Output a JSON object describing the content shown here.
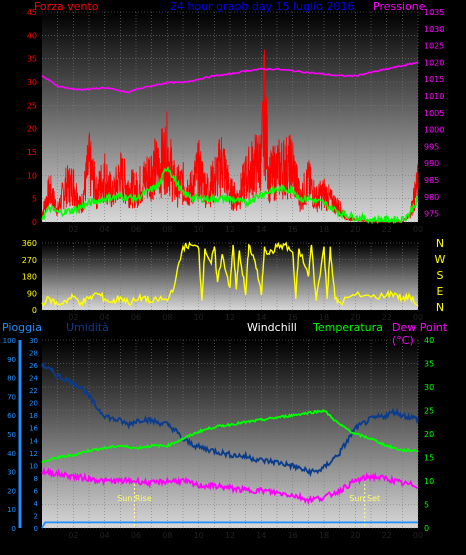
{
  "colors": {
    "wind": "#ff0000",
    "wind_avg": "#00ff00",
    "pressure": "#ff00ff",
    "direction": "#ffff00",
    "rain": "#1e90ff",
    "humidity": "#0b3c8c",
    "temperature": "#00ff00",
    "dewpoint": "#ff00ff",
    "windchill": "#003c96",
    "sun": "#ffff99",
    "axis_label": "#ff0000",
    "title": "#0000ff",
    "hour_labels": "#000000"
  },
  "header": {
    "left_label": "Forza vento",
    "title": "24 hour graph day 15 luglio 2016",
    "right_label": "Pressione"
  },
  "legend_bottom": {
    "rain": "Pioggia",
    "humidity": "Umidità",
    "windchill": "Windchill",
    "temperature": "Temperatura",
    "dewpoint": "Dew Point (°C)"
  },
  "hour_ticks": [
    "02",
    "04",
    "06",
    "08",
    "10",
    "12",
    "14",
    "16",
    "18",
    "20",
    "22",
    "00"
  ],
  "sun": {
    "rise_label": "Sun Rise",
    "set_label": "Sun Set",
    "rise_hour": 5.9,
    "set_hour": 20.6
  },
  "chart_data": [
    {
      "type": "line",
      "name_left": "Forza vento",
      "name_right": "Pressione",
      "x_range_hours": [
        0,
        24
      ],
      "y_left_range": [
        0,
        45
      ],
      "y_left_ticks": [
        0,
        5,
        10,
        15,
        20,
        25,
        30,
        35,
        40,
        45
      ],
      "y_right_range": [
        972.5,
        1035
      ],
      "y_right_ticks": [
        975,
        980,
        985,
        990,
        995,
        1000,
        1005,
        1010,
        1015,
        1020,
        1025,
        1030,
        1035
      ],
      "wind_gust_profile": [
        [
          0,
          3
        ],
        [
          0.5,
          11
        ],
        [
          1,
          4
        ],
        [
          1.5,
          12
        ],
        [
          2,
          13
        ],
        [
          2.5,
          5
        ],
        [
          3,
          20
        ],
        [
          3.5,
          10
        ],
        [
          4,
          16
        ],
        [
          4.5,
          9
        ],
        [
          5,
          16
        ],
        [
          5.5,
          12
        ],
        [
          6,
          11
        ],
        [
          6.5,
          14
        ],
        [
          7,
          18
        ],
        [
          7.5,
          19
        ],
        [
          8,
          24
        ],
        [
          8.5,
          12
        ],
        [
          9,
          13
        ],
        [
          9.5,
          11
        ],
        [
          10,
          18
        ],
        [
          10.5,
          11
        ],
        [
          11,
          14
        ],
        [
          11.5,
          21
        ],
        [
          12,
          10
        ],
        [
          12.5,
          8
        ],
        [
          13,
          15
        ],
        [
          13.5,
          19
        ],
        [
          14,
          21
        ],
        [
          14.2,
          40
        ],
        [
          14.5,
          15
        ],
        [
          15,
          18
        ],
        [
          15.5,
          19
        ],
        [
          16,
          19
        ],
        [
          16.5,
          8
        ],
        [
          17,
          14
        ],
        [
          17.5,
          8
        ],
        [
          18,
          10
        ],
        [
          18.5,
          7
        ],
        [
          19,
          5
        ],
        [
          19.5,
          1
        ],
        [
          20,
          1
        ],
        [
          21,
          0
        ],
        [
          22,
          0
        ],
        [
          23,
          0
        ],
        [
          23.5,
          3
        ],
        [
          24,
          13
        ]
      ],
      "wind_avg": [
        [
          0,
          1
        ],
        [
          0.5,
          3
        ],
        [
          1,
          2
        ],
        [
          2,
          2.5
        ],
        [
          3,
          4
        ],
        [
          4,
          5
        ],
        [
          5,
          5.5
        ],
        [
          6,
          5
        ],
        [
          6.5,
          6
        ],
        [
          7,
          7
        ],
        [
          7.5,
          8
        ],
        [
          8,
          12
        ],
        [
          8.5,
          9
        ],
        [
          9,
          6
        ],
        [
          10,
          5
        ],
        [
          11,
          5
        ],
        [
          12,
          5
        ],
        [
          13,
          4
        ],
        [
          14,
          6
        ],
        [
          15,
          7
        ],
        [
          16,
          7
        ],
        [
          16.5,
          5
        ],
        [
          17,
          5
        ],
        [
          18,
          4
        ],
        [
          19,
          2
        ],
        [
          20,
          1
        ],
        [
          21,
          0.5
        ],
        [
          22,
          0.5
        ],
        [
          23,
          0.5
        ],
        [
          23.5,
          2
        ],
        [
          24,
          5
        ]
      ],
      "pressure": [
        [
          0,
          1016
        ],
        [
          1,
          1013
        ],
        [
          2,
          1012
        ],
        [
          3,
          1012
        ],
        [
          4,
          1012.5
        ],
        [
          5,
          1011.5
        ],
        [
          5.5,
          1011
        ],
        [
          6,
          1012
        ],
        [
          7,
          1013
        ],
        [
          8,
          1014
        ],
        [
          9,
          1014
        ],
        [
          10,
          1015
        ],
        [
          11,
          1016
        ],
        [
          12,
          1016.5
        ],
        [
          13,
          1017.5
        ],
        [
          14,
          1018
        ],
        [
          15,
          1018
        ],
        [
          16,
          1017.5
        ],
        [
          17,
          1017
        ],
        [
          18,
          1016.5
        ],
        [
          19,
          1016
        ],
        [
          20,
          1016
        ],
        [
          21,
          1017
        ],
        [
          22,
          1018
        ],
        [
          23,
          1019
        ],
        [
          24,
          1020
        ]
      ]
    },
    {
      "type": "line",
      "name_right": "N W S E N",
      "y_range": [
        0,
        360
      ],
      "y_ticks": [
        0,
        90,
        180,
        270,
        360
      ],
      "direction": [
        [
          0,
          40
        ],
        [
          0.5,
          60
        ],
        [
          1,
          30
        ],
        [
          1.5,
          50
        ],
        [
          2,
          70
        ],
        [
          2.5,
          40
        ],
        [
          3,
          60
        ],
        [
          3.5,
          90
        ],
        [
          4,
          60
        ],
        [
          4.5,
          40
        ],
        [
          5,
          70
        ],
        [
          5.5,
          40
        ],
        [
          6,
          50
        ],
        [
          6.5,
          70
        ],
        [
          7,
          40
        ],
        [
          7.5,
          60
        ],
        [
          8,
          50
        ],
        [
          8.5,
          150
        ],
        [
          9,
          340
        ],
        [
          9.5,
          350
        ],
        [
          10,
          330
        ],
        [
          10.2,
          50
        ],
        [
          10.4,
          330
        ],
        [
          10.8,
          250
        ],
        [
          11,
          340
        ],
        [
          11.2,
          150
        ],
        [
          11.5,
          300
        ],
        [
          12,
          120
        ],
        [
          12.2,
          350
        ],
        [
          12.4,
          110
        ],
        [
          12.6,
          320
        ],
        [
          13,
          80
        ],
        [
          13.2,
          350
        ],
        [
          13.6,
          260
        ],
        [
          14,
          80
        ],
        [
          14.2,
          340
        ],
        [
          14.5,
          300
        ],
        [
          15,
          340
        ],
        [
          15.5,
          350
        ],
        [
          16,
          310
        ],
        [
          16.2,
          60
        ],
        [
          16.4,
          330
        ],
        [
          17,
          180
        ],
        [
          17.2,
          350
        ],
        [
          17.5,
          50
        ],
        [
          18,
          340
        ],
        [
          18.2,
          60
        ],
        [
          18.4,
          340
        ],
        [
          18.7,
          60
        ],
        [
          19,
          40
        ],
        [
          20,
          80
        ],
        [
          21,
          70
        ],
        [
          22,
          80
        ],
        [
          22.5,
          90
        ],
        [
          23,
          60
        ],
        [
          23.5,
          70
        ],
        [
          24,
          20
        ]
      ]
    },
    {
      "type": "line",
      "name_left": "Pioggia / Umidità",
      "name_right": "Temperatura",
      "y_rain_ticks": [
        0,
        10,
        20,
        30,
        40,
        50,
        60,
        70,
        80,
        90,
        100
      ],
      "y_hum_ticks": [
        0,
        2,
        4,
        6,
        8,
        10,
        12,
        14,
        16,
        18,
        20,
        22,
        24,
        26,
        28,
        30
      ],
      "y_temp_range": [
        0,
        40
      ],
      "y_temp_ticks": [
        0,
        5,
        10,
        15,
        20,
        25,
        30,
        35,
        40
      ],
      "rain": [
        [
          0,
          0
        ],
        [
          0.2,
          3
        ],
        [
          24,
          3
        ]
      ],
      "humidity_pct": [
        [
          0,
          87
        ],
        [
          0.5,
          84
        ],
        [
          1,
          81
        ],
        [
          1.5,
          79
        ],
        [
          2,
          77
        ],
        [
          2.5,
          75
        ],
        [
          3,
          70
        ],
        [
          3.5,
          64
        ],
        [
          4,
          60
        ],
        [
          4.5,
          58
        ],
        [
          5,
          57
        ],
        [
          5.5,
          55
        ],
        [
          6,
          57
        ],
        [
          6.5,
          58
        ],
        [
          7,
          57
        ],
        [
          7.5,
          56
        ],
        [
          8,
          55
        ],
        [
          8.5,
          52
        ],
        [
          9,
          47
        ],
        [
          10,
          43
        ],
        [
          11,
          41
        ],
        [
          12,
          39
        ],
        [
          13,
          38
        ],
        [
          14,
          36
        ],
        [
          15,
          35
        ],
        [
          16,
          33
        ],
        [
          17,
          30
        ],
        [
          17.5,
          30
        ],
        [
          18,
          32
        ],
        [
          19,
          40
        ],
        [
          20,
          53
        ],
        [
          21,
          58
        ],
        [
          22,
          60
        ],
        [
          22.5,
          62
        ],
        [
          23,
          60
        ],
        [
          24,
          58
        ]
      ],
      "temperature": [
        [
          0,
          14
        ],
        [
          1,
          15
        ],
        [
          2,
          15.5
        ],
        [
          3,
          16.5
        ],
        [
          4,
          17
        ],
        [
          5,
          17.5
        ],
        [
          6,
          17
        ],
        [
          7,
          17.5
        ],
        [
          8,
          17.5
        ],
        [
          9,
          19
        ],
        [
          10,
          20.5
        ],
        [
          11,
          21.5
        ],
        [
          12,
          22
        ],
        [
          13,
          22.5
        ],
        [
          14,
          23
        ],
        [
          15,
          23.5
        ],
        [
          16,
          24
        ],
        [
          17,
          24.5
        ],
        [
          18,
          25
        ],
        [
          19,
          22
        ],
        [
          20,
          20
        ],
        [
          21,
          19
        ],
        [
          22,
          17.5
        ],
        [
          23,
          16.5
        ],
        [
          24,
          16.5
        ]
      ],
      "dewpoint": [
        [
          0,
          12
        ],
        [
          1,
          11.5
        ],
        [
          2,
          11
        ],
        [
          3,
          10.5
        ],
        [
          4,
          10
        ],
        [
          5,
          10
        ],
        [
          6,
          10
        ],
        [
          7,
          9.5
        ],
        [
          8,
          10
        ],
        [
          9,
          10
        ],
        [
          10,
          9
        ],
        [
          11,
          9
        ],
        [
          12,
          8.5
        ],
        [
          13,
          8
        ],
        [
          14,
          8
        ],
        [
          15,
          7.5
        ],
        [
          16,
          7
        ],
        [
          17,
          6
        ],
        [
          18,
          6.5
        ],
        [
          19,
          8
        ],
        [
          20,
          10
        ],
        [
          21,
          11
        ],
        [
          22,
          10.5
        ],
        [
          23,
          9.5
        ],
        [
          24,
          9
        ]
      ]
    }
  ]
}
